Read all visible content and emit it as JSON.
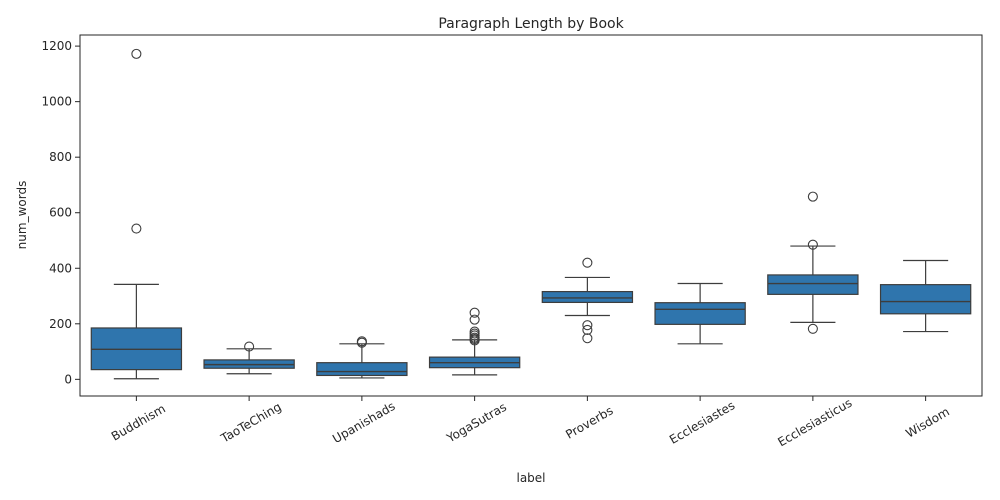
{
  "chart_data": {
    "type": "box",
    "title": "Paragraph Length by Book",
    "xlabel": "label",
    "ylabel": "num_words",
    "ylim": [
      -60,
      1240
    ],
    "yticks": [
      0,
      200,
      400,
      600,
      800,
      1000,
      1200
    ],
    "grid": false,
    "legend": "none",
    "box_color": "#2f75ad",
    "line_color": "#3d3d3d",
    "categories": [
      "Buddhism",
      "TaoTeChing",
      "Upanishads",
      "YogaSutras",
      "Proverbs",
      "Ecclesiastes",
      "Ecclesiasticus",
      "Wisdom"
    ],
    "boxes": [
      {
        "whisker_low": 2,
        "q1": 35,
        "median": 108,
        "q3": 185,
        "whisker_high": 342,
        "outliers": [
          543,
          1172
        ]
      },
      {
        "whisker_low": 20,
        "q1": 40,
        "median": 53,
        "q3": 70,
        "whisker_high": 110,
        "outliers": [
          118
        ]
      },
      {
        "whisker_low": 5,
        "q1": 14,
        "median": 28,
        "q3": 60,
        "whisker_high": 128,
        "outliers": [
          132,
          137
        ]
      },
      {
        "whisker_low": 16,
        "q1": 42,
        "median": 60,
        "q3": 80,
        "whisker_high": 142,
        "outliers": [
          140,
          145,
          150,
          158,
          165,
          172,
          215,
          240
        ]
      },
      {
        "whisker_low": 230,
        "q1": 277,
        "median": 293,
        "q3": 316,
        "whisker_high": 367,
        "outliers": [
          148,
          178,
          195,
          420
        ]
      },
      {
        "whisker_low": 128,
        "q1": 198,
        "median": 252,
        "q3": 276,
        "whisker_high": 345,
        "outliers": []
      },
      {
        "whisker_low": 205,
        "q1": 306,
        "median": 345,
        "q3": 376,
        "whisker_high": 480,
        "outliers": [
          182,
          485,
          658
        ]
      },
      {
        "whisker_low": 172,
        "q1": 236,
        "median": 280,
        "q3": 341,
        "whisker_high": 428,
        "outliers": []
      }
    ]
  }
}
